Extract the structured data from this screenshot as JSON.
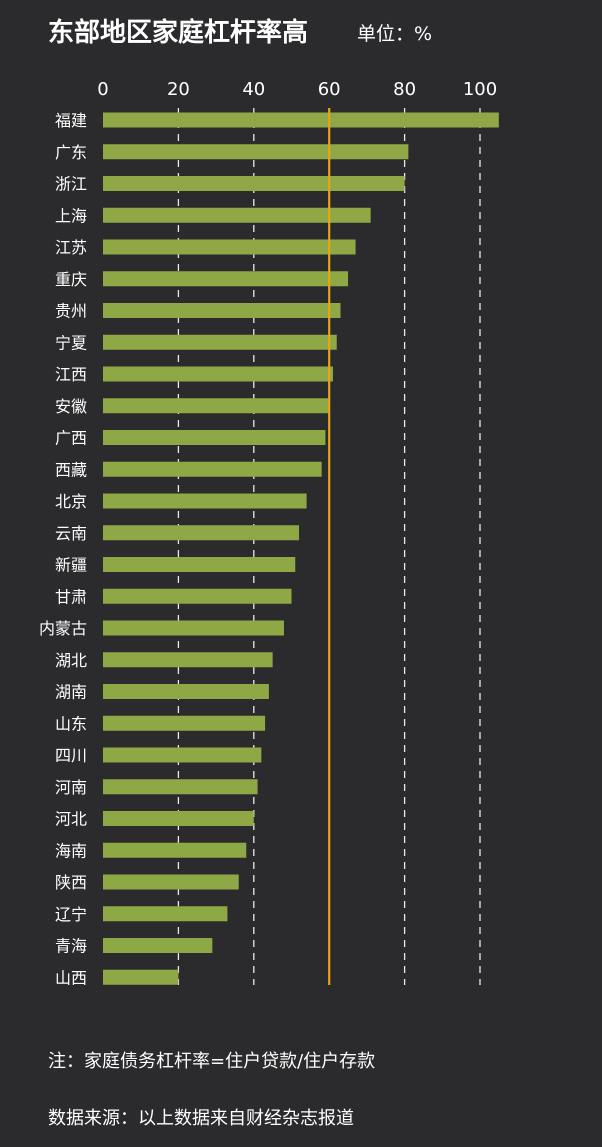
{
  "header": {
    "title": "东部地区家庭杠杆率高",
    "unit": "单位：%"
  },
  "footer": {
    "note": "注：家庭债务杠杆率=住户贷款/住户存款",
    "source": "数据来源：以上数据来自财经杂志报道"
  },
  "colors": {
    "background": "#2b2b2d",
    "bar": "#8fa846",
    "reference_line": "#e8a317",
    "grid": "#ffffff",
    "text": "#ffffff"
  },
  "chart_data": {
    "type": "bar",
    "orientation": "horizontal",
    "title": "东部地区家庭杠杆率高",
    "unit": "%",
    "xlim": [
      0,
      105
    ],
    "xticks": [
      0,
      20,
      40,
      60,
      80,
      100
    ],
    "grid": "vertical dashed",
    "reference_line": 60,
    "categories": [
      "福建",
      "广东",
      "浙江",
      "上海",
      "江苏",
      "重庆",
      "贵州",
      "宁夏",
      "江西",
      "安徽",
      "广西",
      "西藏",
      "北京",
      "云南",
      "新疆",
      "甘肃",
      "内蒙古",
      "湖北",
      "湖南",
      "山东",
      "四川",
      "河南",
      "河北",
      "海南",
      "陕西",
      "辽宁",
      "青海",
      "山西"
    ],
    "values": [
      105,
      81,
      80,
      71,
      67,
      65,
      63,
      62,
      61,
      60,
      59,
      58,
      54,
      52,
      51,
      50,
      48,
      45,
      44,
      43,
      42,
      41,
      40,
      38,
      36,
      33,
      29,
      20
    ]
  }
}
